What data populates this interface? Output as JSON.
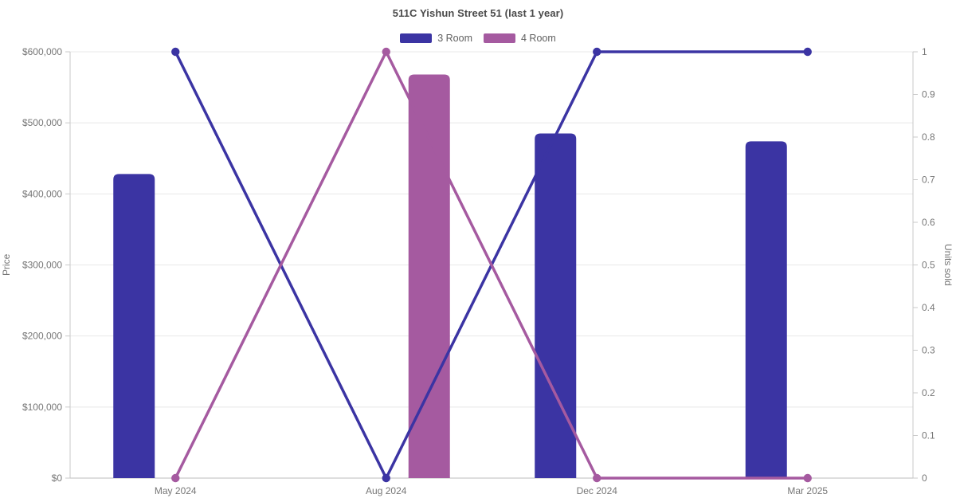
{
  "title": "511C Yishun Street 51 (last 1 year)",
  "legend": [
    {
      "label": "3 Room",
      "color": "#3b34a3"
    },
    {
      "label": "4 Room",
      "color": "#a55aa0"
    }
  ],
  "axes": {
    "left_label": "Price",
    "right_label": "Units sold",
    "left_ticks": [
      "$0",
      "$100,000",
      "$200,000",
      "$300,000",
      "$400,000",
      "$500,000",
      "$600,000"
    ],
    "right_ticks": [
      "0",
      "0.1",
      "0.2",
      "0.3",
      "0.4",
      "0.5",
      "0.6",
      "0.7",
      "0.8",
      "0.9",
      "1"
    ]
  },
  "colors": {
    "blue": "#3b34a3",
    "purple": "#a55aa0",
    "gridline": "#e8e8e8",
    "axis_line": "#c9c9c9",
    "tick_text": "#767676",
    "title_text": "#4a4a4a",
    "background": "#ffffff"
  },
  "chart_data": {
    "type": "combo",
    "title": "511C Yishun Street 51 (last 1 year)",
    "categories": [
      "May 2024",
      "Aug 2024",
      "Dec 2024",
      "Mar 2025"
    ],
    "series": [
      {
        "name": "3 Room",
        "kind": "bar",
        "axis": "left",
        "color": "#3b34a3",
        "values": [
          428000,
          null,
          485000,
          474000
        ]
      },
      {
        "name": "4 Room",
        "kind": "bar",
        "axis": "left",
        "color": "#a55aa0",
        "values": [
          null,
          568000,
          null,
          null
        ]
      },
      {
        "name": "3 Room",
        "kind": "line",
        "axis": "right",
        "color": "#3b34a3",
        "values": [
          1,
          0,
          1,
          1
        ]
      },
      {
        "name": "4 Room",
        "kind": "line",
        "axis": "right",
        "color": "#a55aa0",
        "values": [
          0,
          1,
          0,
          0
        ]
      }
    ],
    "xlabel": "",
    "ylabel_left": "Price",
    "ylabel_right": "Units sold",
    "ylim_left": [
      0,
      600000
    ],
    "ylim_right": [
      0,
      1
    ],
    "grid": true,
    "legend_position": "top"
  }
}
